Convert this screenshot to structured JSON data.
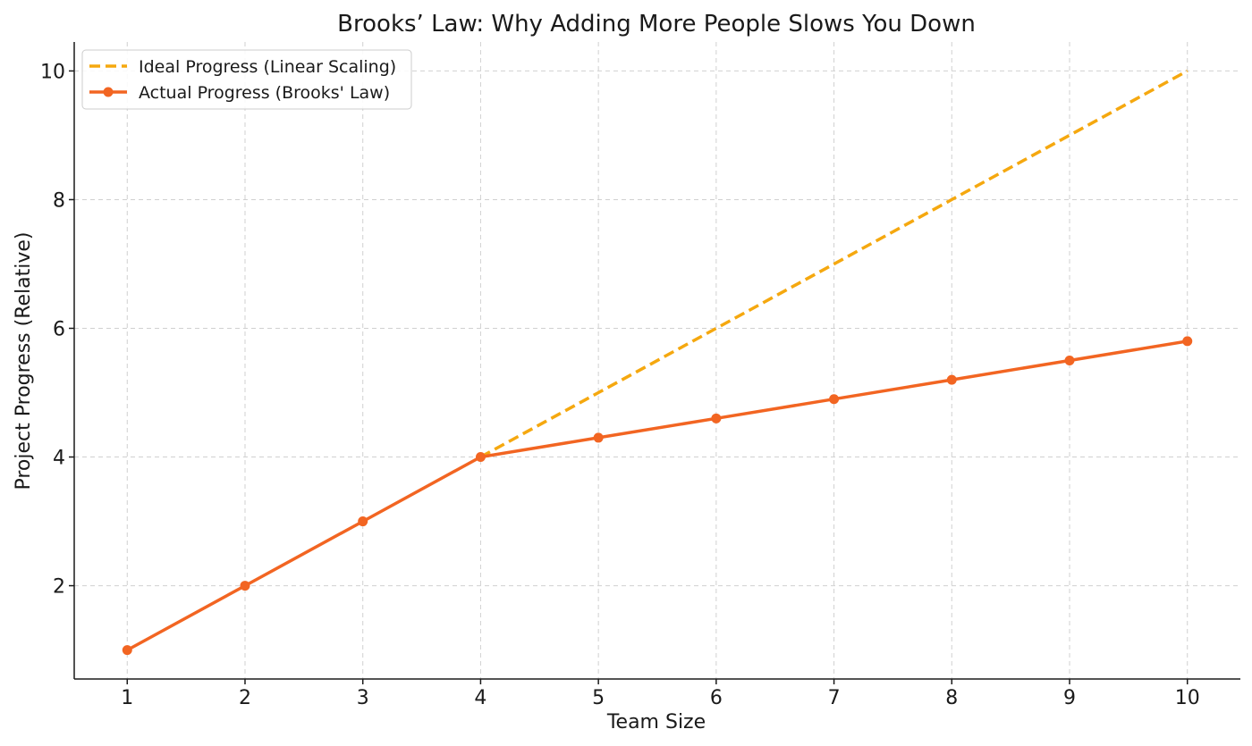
{
  "chart_data": {
    "type": "line",
    "title": "Brooks’ Law: Why Adding More People Slows You Down",
    "xlabel": "Team Size",
    "ylabel": "Project Progress (Relative)",
    "x": [
      1,
      2,
      3,
      4,
      5,
      6,
      7,
      8,
      9,
      10
    ],
    "xticks": [
      "1",
      "2",
      "3",
      "4",
      "5",
      "6",
      "7",
      "8",
      "9",
      "10"
    ],
    "yticks": [
      "2",
      "4",
      "6",
      "8",
      "10"
    ],
    "xlim": [
      0.55,
      10.45
    ],
    "ylim": [
      0.55,
      10.45
    ],
    "grid": true,
    "legend_position": "top-left",
    "series": [
      {
        "name": "Ideal Progress (Linear Scaling)",
        "x": [
          4,
          5,
          6,
          7,
          8,
          9,
          10
        ],
        "values": [
          4,
          5,
          6,
          7,
          8,
          9,
          10
        ],
        "color": "#f5a80f",
        "style": "dashed",
        "markers": false
      },
      {
        "name": "Actual Progress (Brooks' Law)",
        "x": [
          1,
          2,
          3,
          4,
          5,
          6,
          7,
          8,
          9,
          10
        ],
        "values": [
          1,
          2,
          3,
          4,
          4.3,
          4.6,
          4.9,
          5.2,
          5.5,
          5.8
        ],
        "color": "#f26522",
        "style": "solid",
        "markers": true
      }
    ]
  }
}
